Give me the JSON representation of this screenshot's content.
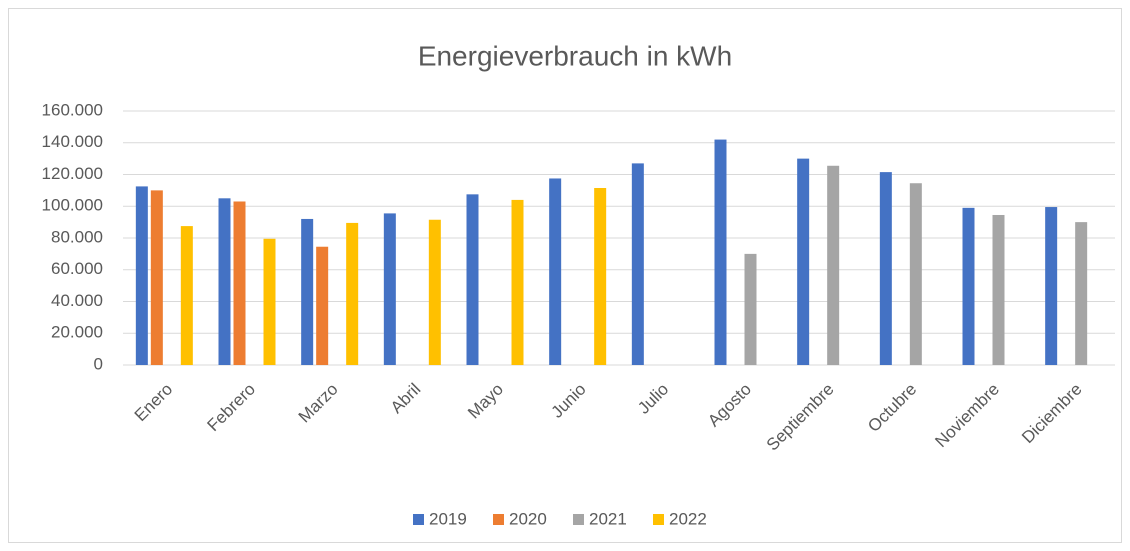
{
  "chart_data": {
    "type": "bar",
    "title": "Energieverbrauch in kWh",
    "categories": [
      "Enero",
      "Febrero",
      "Marzo",
      "Abril",
      "Mayo",
      "Junio",
      "Julio",
      "Agosto",
      "Septiembre",
      "Octubre",
      "Noviembre",
      "Diciembre"
    ],
    "series": [
      {
        "name": "2019",
        "color": "#4472c4",
        "values": [
          112500,
          105000,
          92000,
          95500,
          107500,
          117500,
          127000,
          142000,
          130000,
          121500,
          99000,
          99500
        ]
      },
      {
        "name": "2020",
        "color": "#ed7d31",
        "values": [
          110000,
          103000,
          74500,
          null,
          null,
          null,
          null,
          null,
          null,
          null,
          null,
          null
        ]
      },
      {
        "name": "2021",
        "color": "#a5a5a5",
        "values": [
          null,
          null,
          null,
          null,
          null,
          null,
          null,
          70000,
          125500,
          114500,
          94500,
          90000
        ]
      },
      {
        "name": "2022",
        "color": "#ffc000",
        "values": [
          87500,
          79500,
          89500,
          91500,
          104000,
          111500,
          null,
          null,
          null,
          null,
          null,
          null
        ]
      }
    ],
    "ylim": [
      0,
      160000
    ],
    "yticks": [
      0,
      {
        "value": 20000,
        "label": "20.000"
      },
      {
        "value": 40000,
        "label": "40.000"
      },
      {
        "value": 60000,
        "label": "60.000"
      },
      {
        "value": 80000,
        "label": "80.000"
      },
      {
        "value": 100000,
        "label": "100.000"
      },
      {
        "value": 120000,
        "label": "120.000"
      },
      {
        "value": 140000,
        "label": "140.000"
      },
      {
        "value": 160000,
        "label": "160.000"
      }
    ],
    "grid": true,
    "legend": "bottom"
  }
}
